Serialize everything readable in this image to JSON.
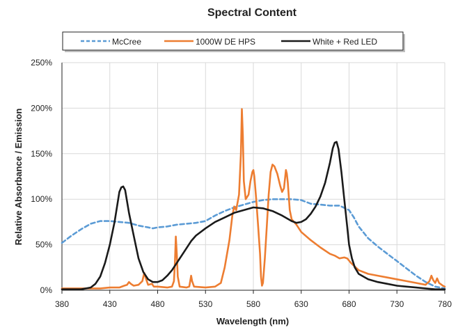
{
  "chart_data": {
    "type": "line",
    "title": "Spectral Content",
    "xlabel": "Wavelength (nm)",
    "ylabel": "Relative Absorbance / Emission",
    "xlim": [
      380,
      780
    ],
    "ylim": [
      0,
      250
    ],
    "x_ticks": [
      380,
      430,
      480,
      530,
      580,
      630,
      680,
      730,
      780
    ],
    "y_ticks": [
      0,
      50,
      100,
      150,
      200,
      250
    ],
    "y_tick_labels": [
      "0%",
      "50%",
      "100%",
      "150%",
      "200%",
      "250%"
    ],
    "grid": true,
    "legend_position": "top",
    "series": [
      {
        "name": "McCree",
        "color": "#5b9bd5",
        "style": "dashed",
        "points": [
          [
            380,
            52
          ],
          [
            390,
            60
          ],
          [
            400,
            67
          ],
          [
            410,
            73
          ],
          [
            420,
            76
          ],
          [
            430,
            76
          ],
          [
            440,
            75
          ],
          [
            450,
            74
          ],
          [
            460,
            71
          ],
          [
            470,
            69
          ],
          [
            475,
            68
          ],
          [
            480,
            69
          ],
          [
            490,
            70
          ],
          [
            500,
            72
          ],
          [
            510,
            73
          ],
          [
            520,
            74
          ],
          [
            530,
            76
          ],
          [
            540,
            82
          ],
          [
            550,
            87
          ],
          [
            560,
            91
          ],
          [
            570,
            94
          ],
          [
            580,
            97
          ],
          [
            590,
            99
          ],
          [
            600,
            100
          ],
          [
            610,
            100
          ],
          [
            620,
            100
          ],
          [
            630,
            99
          ],
          [
            640,
            95
          ],
          [
            650,
            94
          ],
          [
            660,
            93
          ],
          [
            670,
            93
          ],
          [
            680,
            88
          ],
          [
            685,
            80
          ],
          [
            690,
            70
          ],
          [
            700,
            57
          ],
          [
            710,
            48
          ],
          [
            720,
            40
          ],
          [
            730,
            32
          ],
          [
            740,
            24
          ],
          [
            750,
            16
          ],
          [
            760,
            9
          ],
          [
            770,
            4
          ],
          [
            780,
            2
          ]
        ]
      },
      {
        "name": "1000W DE HPS",
        "color": "#ed7d31",
        "style": "solid",
        "points": [
          [
            380,
            2
          ],
          [
            400,
            2
          ],
          [
            420,
            2
          ],
          [
            430,
            3
          ],
          [
            440,
            3
          ],
          [
            445,
            5
          ],
          [
            448,
            6
          ],
          [
            450,
            9
          ],
          [
            452,
            7
          ],
          [
            455,
            5
          ],
          [
            460,
            6
          ],
          [
            464,
            10
          ],
          [
            466,
            19
          ],
          [
            468,
            12
          ],
          [
            470,
            6
          ],
          [
            474,
            7
          ],
          [
            476,
            4
          ],
          [
            480,
            4
          ],
          [
            490,
            3
          ],
          [
            495,
            4
          ],
          [
            497,
            10
          ],
          [
            498,
            30
          ],
          [
            499,
            59
          ],
          [
            500,
            40
          ],
          [
            501,
            15
          ],
          [
            503,
            4
          ],
          [
            510,
            3
          ],
          [
            513,
            4
          ],
          [
            514,
            10
          ],
          [
            515,
            16
          ],
          [
            516,
            10
          ],
          [
            518,
            4
          ],
          [
            530,
            3
          ],
          [
            540,
            4
          ],
          [
            546,
            8
          ],
          [
            550,
            25
          ],
          [
            555,
            55
          ],
          [
            558,
            82
          ],
          [
            560,
            92
          ],
          [
            562,
            88
          ],
          [
            565,
            105
          ],
          [
            567,
            150
          ],
          [
            568,
            199
          ],
          [
            569,
            170
          ],
          [
            570,
            120
          ],
          [
            572,
            100
          ],
          [
            575,
            105
          ],
          [
            577,
            120
          ],
          [
            579,
            130
          ],
          [
            580,
            132
          ],
          [
            581,
            125
          ],
          [
            583,
            100
          ],
          [
            585,
            70
          ],
          [
            587,
            40
          ],
          [
            588,
            15
          ],
          [
            589,
            5
          ],
          [
            590,
            8
          ],
          [
            592,
            35
          ],
          [
            594,
            70
          ],
          [
            596,
            105
          ],
          [
            598,
            130
          ],
          [
            600,
            138
          ],
          [
            602,
            136
          ],
          [
            605,
            128
          ],
          [
            608,
            115
          ],
          [
            610,
            108
          ],
          [
            612,
            112
          ],
          [
            614,
            132
          ],
          [
            615,
            128
          ],
          [
            616,
            118
          ],
          [
            618,
            88
          ],
          [
            620,
            78
          ],
          [
            625,
            72
          ],
          [
            630,
            64
          ],
          [
            640,
            55
          ],
          [
            650,
            47
          ],
          [
            660,
            40
          ],
          [
            665,
            38
          ],
          [
            670,
            35
          ],
          [
            675,
            36
          ],
          [
            678,
            35
          ],
          [
            682,
            30
          ],
          [
            690,
            22
          ],
          [
            700,
            18
          ],
          [
            710,
            16
          ],
          [
            720,
            14
          ],
          [
            730,
            12
          ],
          [
            740,
            10
          ],
          [
            750,
            8
          ],
          [
            760,
            6
          ],
          [
            764,
            10
          ],
          [
            766,
            16
          ],
          [
            768,
            11
          ],
          [
            770,
            8
          ],
          [
            772,
            13
          ],
          [
            774,
            8
          ],
          [
            778,
            5
          ],
          [
            780,
            4
          ]
        ]
      },
      {
        "name": "White + Red LED",
        "color": "#1a1a1a",
        "style": "solid",
        "points": [
          [
            380,
            1
          ],
          [
            390,
            1
          ],
          [
            400,
            1
          ],
          [
            410,
            3
          ],
          [
            415,
            7
          ],
          [
            420,
            15
          ],
          [
            425,
            30
          ],
          [
            430,
            50
          ],
          [
            435,
            75
          ],
          [
            438,
            95
          ],
          [
            440,
            108
          ],
          [
            442,
            113
          ],
          [
            444,
            114
          ],
          [
            446,
            110
          ],
          [
            450,
            85
          ],
          [
            455,
            60
          ],
          [
            460,
            35
          ],
          [
            465,
            20
          ],
          [
            470,
            12
          ],
          [
            475,
            9
          ],
          [
            480,
            9
          ],
          [
            485,
            11
          ],
          [
            490,
            16
          ],
          [
            495,
            22
          ],
          [
            500,
            30
          ],
          [
            505,
            38
          ],
          [
            510,
            46
          ],
          [
            515,
            54
          ],
          [
            520,
            60
          ],
          [
            530,
            68
          ],
          [
            540,
            75
          ],
          [
            550,
            80
          ],
          [
            560,
            85
          ],
          [
            570,
            88
          ],
          [
            580,
            91
          ],
          [
            590,
            90
          ],
          [
            600,
            87
          ],
          [
            610,
            82
          ],
          [
            620,
            76
          ],
          [
            625,
            74
          ],
          [
            630,
            75
          ],
          [
            635,
            78
          ],
          [
            640,
            84
          ],
          [
            645,
            92
          ],
          [
            650,
            103
          ],
          [
            655,
            118
          ],
          [
            660,
            140
          ],
          [
            663,
            156
          ],
          [
            665,
            162
          ],
          [
            667,
            163
          ],
          [
            669,
            155
          ],
          [
            672,
            130
          ],
          [
            675,
            100
          ],
          [
            678,
            70
          ],
          [
            680,
            50
          ],
          [
            683,
            35
          ],
          [
            686,
            25
          ],
          [
            690,
            18
          ],
          [
            700,
            12
          ],
          [
            710,
            9
          ],
          [
            720,
            7
          ],
          [
            730,
            5
          ],
          [
            740,
            4
          ],
          [
            750,
            3
          ],
          [
            760,
            2
          ],
          [
            770,
            1
          ],
          [
            780,
            1
          ]
        ]
      }
    ]
  }
}
